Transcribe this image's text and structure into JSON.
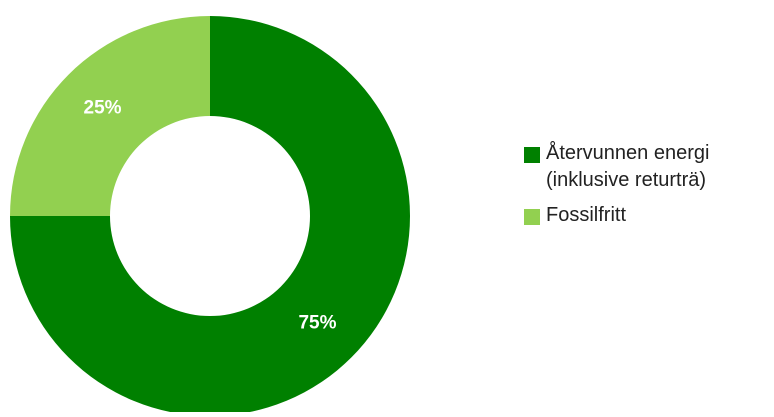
{
  "chart_data": {
    "type": "pie",
    "variant": "donut",
    "title": "",
    "categories": [
      "Återvunnen energi (inklusive returträ)",
      "Fossilfritt"
    ],
    "values": [
      75,
      25
    ],
    "labels": [
      "75%",
      "25%"
    ],
    "colors": [
      "#008000",
      "#92D050"
    ],
    "legend_position": "right",
    "legend": [
      {
        "lines": [
          "Återvunnen energi",
          "(inklusive returträ)"
        ],
        "color": "#008000"
      },
      {
        "lines": [
          "Fossilfritt"
        ],
        "color": "#92D050"
      }
    ]
  }
}
